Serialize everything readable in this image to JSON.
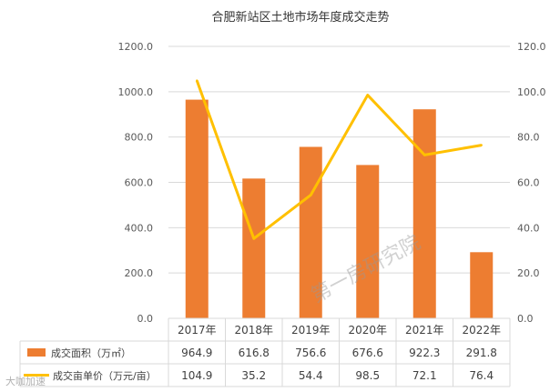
{
  "chart_data": {
    "type": "bar",
    "title": "合肥新站区土地市场年度成交走势",
    "categories": [
      "2017年",
      "2018年",
      "2019年",
      "2020年",
      "2021年",
      "2022年"
    ],
    "series": [
      {
        "name": "成交面积（万㎡）",
        "type": "bar",
        "axis": "left",
        "color": "#ed7d31",
        "values": [
          964.9,
          616.8,
          756.6,
          676.6,
          922.3,
          291.8
        ],
        "labels": [
          "964.9",
          "616.8",
          "756.6",
          "676.6",
          "922.3",
          "291.8"
        ]
      },
      {
        "name": "成交亩单价（万元/亩）",
        "type": "line",
        "axis": "right",
        "color": "#ffc000",
        "values": [
          104.9,
          35.2,
          54.4,
          98.5,
          72.1,
          76.4
        ],
        "labels": [
          "104.9",
          "35.2",
          "54.4",
          "98.5",
          "72.1",
          "76.4"
        ]
      }
    ],
    "ylim_left": [
      0,
      1200
    ],
    "ylim_right": [
      0,
      120
    ],
    "yticks_left": [
      "0.0",
      "200.0",
      "400.0",
      "600.0",
      "800.0",
      "1000.0",
      "1200.0"
    ],
    "yticks_right": [
      "0.0",
      "20.0",
      "40.0",
      "60.0",
      "80.0",
      "100.0",
      "120.0"
    ],
    "grid": true,
    "legend": "data-table-bottom",
    "watermark": "第一房研究院",
    "corner_watermark": "大咖加速"
  }
}
